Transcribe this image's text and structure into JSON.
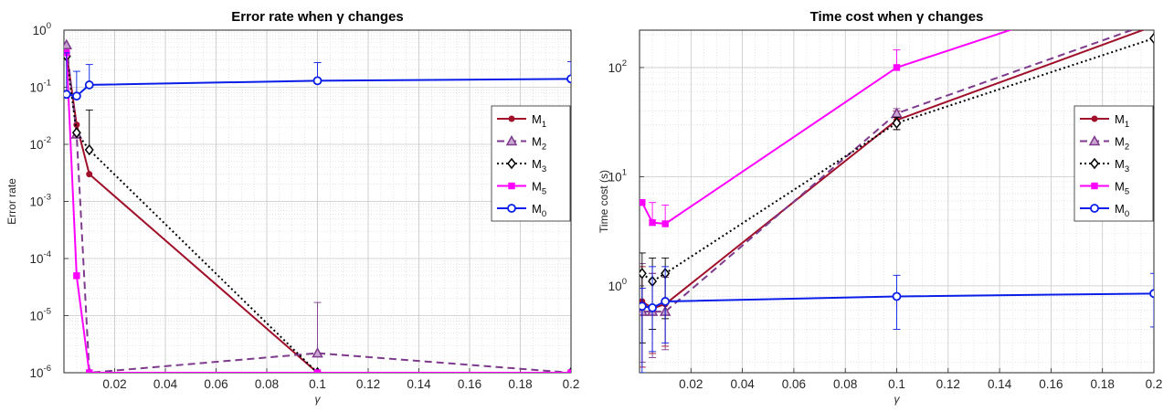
{
  "chart_data": [
    {
      "type": "line",
      "title": "Error rate when γ changes",
      "xlabel": "γ",
      "ylabel": "Error rate",
      "yscale": "log",
      "xlim": [
        0,
        0.2
      ],
      "ylim": [
        1e-06,
        1
      ],
      "x_ticks": [
        0.02,
        0.04,
        0.06,
        0.08,
        0.1,
        0.12,
        0.14,
        0.16,
        0.18,
        0.2
      ],
      "x_tick_labels": [
        "0.02",
        "0.04",
        "0.06",
        "0.08",
        "0.1",
        "0.12",
        "0.14",
        "0.16",
        "0.18",
        "0.2"
      ],
      "y_ticks": [
        1e-06,
        1e-05,
        0.0001,
        0.001,
        0.01,
        0.1,
        1
      ],
      "y_tick_labels": [
        {
          "base": "10",
          "exp": "-6"
        },
        {
          "base": "10",
          "exp": "-5"
        },
        {
          "base": "10",
          "exp": "-4"
        },
        {
          "base": "10",
          "exp": "-3"
        },
        {
          "base": "10",
          "exp": "-2"
        },
        {
          "base": "10",
          "exp": "-1"
        },
        {
          "base": "10",
          "exp": "0"
        }
      ],
      "grid": true,
      "legend_position": "right",
      "series": [
        {
          "name": "M",
          "sub": "1",
          "color": "#a0102a",
          "dash": "",
          "marker": "dot",
          "x": [
            0.001,
            0.005,
            0.01,
            0.1,
            0.2
          ],
          "y": [
            0.4,
            0.022,
            0.003,
            1e-06,
            1e-06
          ],
          "err_hi": [
            null,
            null,
            null,
            null,
            null
          ]
        },
        {
          "name": "M",
          "sub": "2",
          "color": "#7e3a8c",
          "dash": "8,5",
          "marker": "triangle",
          "x": [
            0.001,
            0.005,
            0.01,
            0.1,
            0.2
          ],
          "y": [
            0.55,
            0.015,
            1e-06,
            2.2e-06,
            1e-06
          ],
          "err_hi": [
            null,
            null,
            null,
            1.7e-05,
            null
          ]
        },
        {
          "name": "M",
          "sub": "3",
          "color": "#000000",
          "dash": "2,3",
          "marker": "diamond",
          "x": [
            0.001,
            0.005,
            0.01,
            0.1,
            0.2
          ],
          "y": [
            0.35,
            0.016,
            0.008,
            1e-06,
            1e-06
          ],
          "err_hi": [
            null,
            null,
            0.04,
            null,
            null
          ]
        },
        {
          "name": "M",
          "sub": "5",
          "color": "#ff00ff",
          "dash": "",
          "marker": "square",
          "x": [
            0.001,
            0.005,
            0.01,
            0.1,
            0.2
          ],
          "y": [
            0.4,
            5e-05,
            1e-06,
            1e-06,
            1e-06
          ],
          "err_hi": [
            null,
            null,
            null,
            null,
            null
          ]
        },
        {
          "name": "M",
          "sub": "0",
          "color": "#0a1ee8",
          "dash": "",
          "marker": "circle",
          "x": [
            0.001,
            0.005,
            0.01,
            0.1,
            0.2
          ],
          "y": [
            0.075,
            0.07,
            0.11,
            0.13,
            0.14
          ],
          "err_hi": [
            0.4,
            0.19,
            0.25,
            0.27,
            0.28
          ]
        }
      ]
    },
    {
      "type": "line",
      "title": "Time cost when γ changes",
      "xlabel": "γ",
      "ylabel": "Time cost (s)",
      "yscale": "log",
      "xlim": [
        0,
        0.2
      ],
      "ylim": [
        0.16,
        220
      ],
      "x_ticks": [
        0.02,
        0.04,
        0.06,
        0.08,
        0.1,
        0.12,
        0.14,
        0.16,
        0.18,
        0.2
      ],
      "x_tick_labels": [
        "0.02",
        "0.04",
        "0.06",
        "0.08",
        "0.1",
        "0.12",
        "0.14",
        "0.16",
        "0.18",
        "0.2"
      ],
      "y_ticks": [
        1,
        10,
        100
      ],
      "y_tick_labels": [
        {
          "base": "10",
          "exp": "0"
        },
        {
          "base": "10",
          "exp": "1"
        },
        {
          "base": "10",
          "exp": "2"
        }
      ],
      "grid": true,
      "legend_position": "right",
      "series": [
        {
          "name": "M",
          "sub": "1",
          "color": "#a0102a",
          "dash": "",
          "marker": "dot",
          "x": [
            0.001,
            0.005,
            0.01,
            0.1,
            0.2
          ],
          "y": [
            0.72,
            0.62,
            0.68,
            33,
            240
          ],
          "err_lo": [
            0.18,
            0.24,
            0.28,
            27,
            null
          ],
          "err_hi": [
            1.5,
            1.3,
            1.25,
            40,
            null
          ]
        },
        {
          "name": "M",
          "sub": "2",
          "color": "#7e3a8c",
          "dash": "8,5",
          "marker": "triangle",
          "x": [
            0.001,
            0.005,
            0.01,
            0.1,
            0.2
          ],
          "y": [
            0.58,
            0.58,
            0.58,
            38,
            260
          ],
          "err_lo": [
            0.2,
            0.22,
            0.26,
            30,
            null
          ],
          "err_hi": [
            1.6,
            1.3,
            1.2,
            42,
            null
          ]
        },
        {
          "name": "M",
          "sub": "3",
          "color": "#000000",
          "dash": "2,3",
          "marker": "diamond",
          "x": [
            0.001,
            0.005,
            0.01,
            0.1,
            0.2
          ],
          "y": [
            1.3,
            1.1,
            1.3,
            31,
            185
          ],
          "err_lo": [
            0.3,
            0.4,
            0.5,
            27,
            42
          ],
          "err_hi": [
            2.0,
            1.8,
            1.8,
            35,
            null
          ]
        },
        {
          "name": "M",
          "sub": "5",
          "color": "#ff00ff",
          "dash": "",
          "marker": "square",
          "x": [
            0.001,
            0.005,
            0.01,
            0.1,
            0.2
          ],
          "y": [
            5.8,
            3.8,
            3.7,
            100,
            600
          ],
          "err_lo": [
            null,
            null,
            null,
            null,
            null
          ],
          "err_hi": [
            null,
            5.8,
            5.5,
            145,
            null
          ]
        },
        {
          "name": "M",
          "sub": "0",
          "color": "#0a1ee8",
          "dash": "",
          "marker": "circle",
          "x": [
            0.001,
            0.005,
            0.01,
            0.1,
            0.2
          ],
          "y": [
            0.65,
            0.63,
            0.72,
            0.8,
            0.85
          ],
          "err_lo": [
            0.16,
            0.25,
            0.3,
            0.4,
            0.42
          ],
          "err_hi": [
            0.95,
            1.5,
            1.5,
            1.25,
            1.3
          ]
        }
      ]
    }
  ]
}
